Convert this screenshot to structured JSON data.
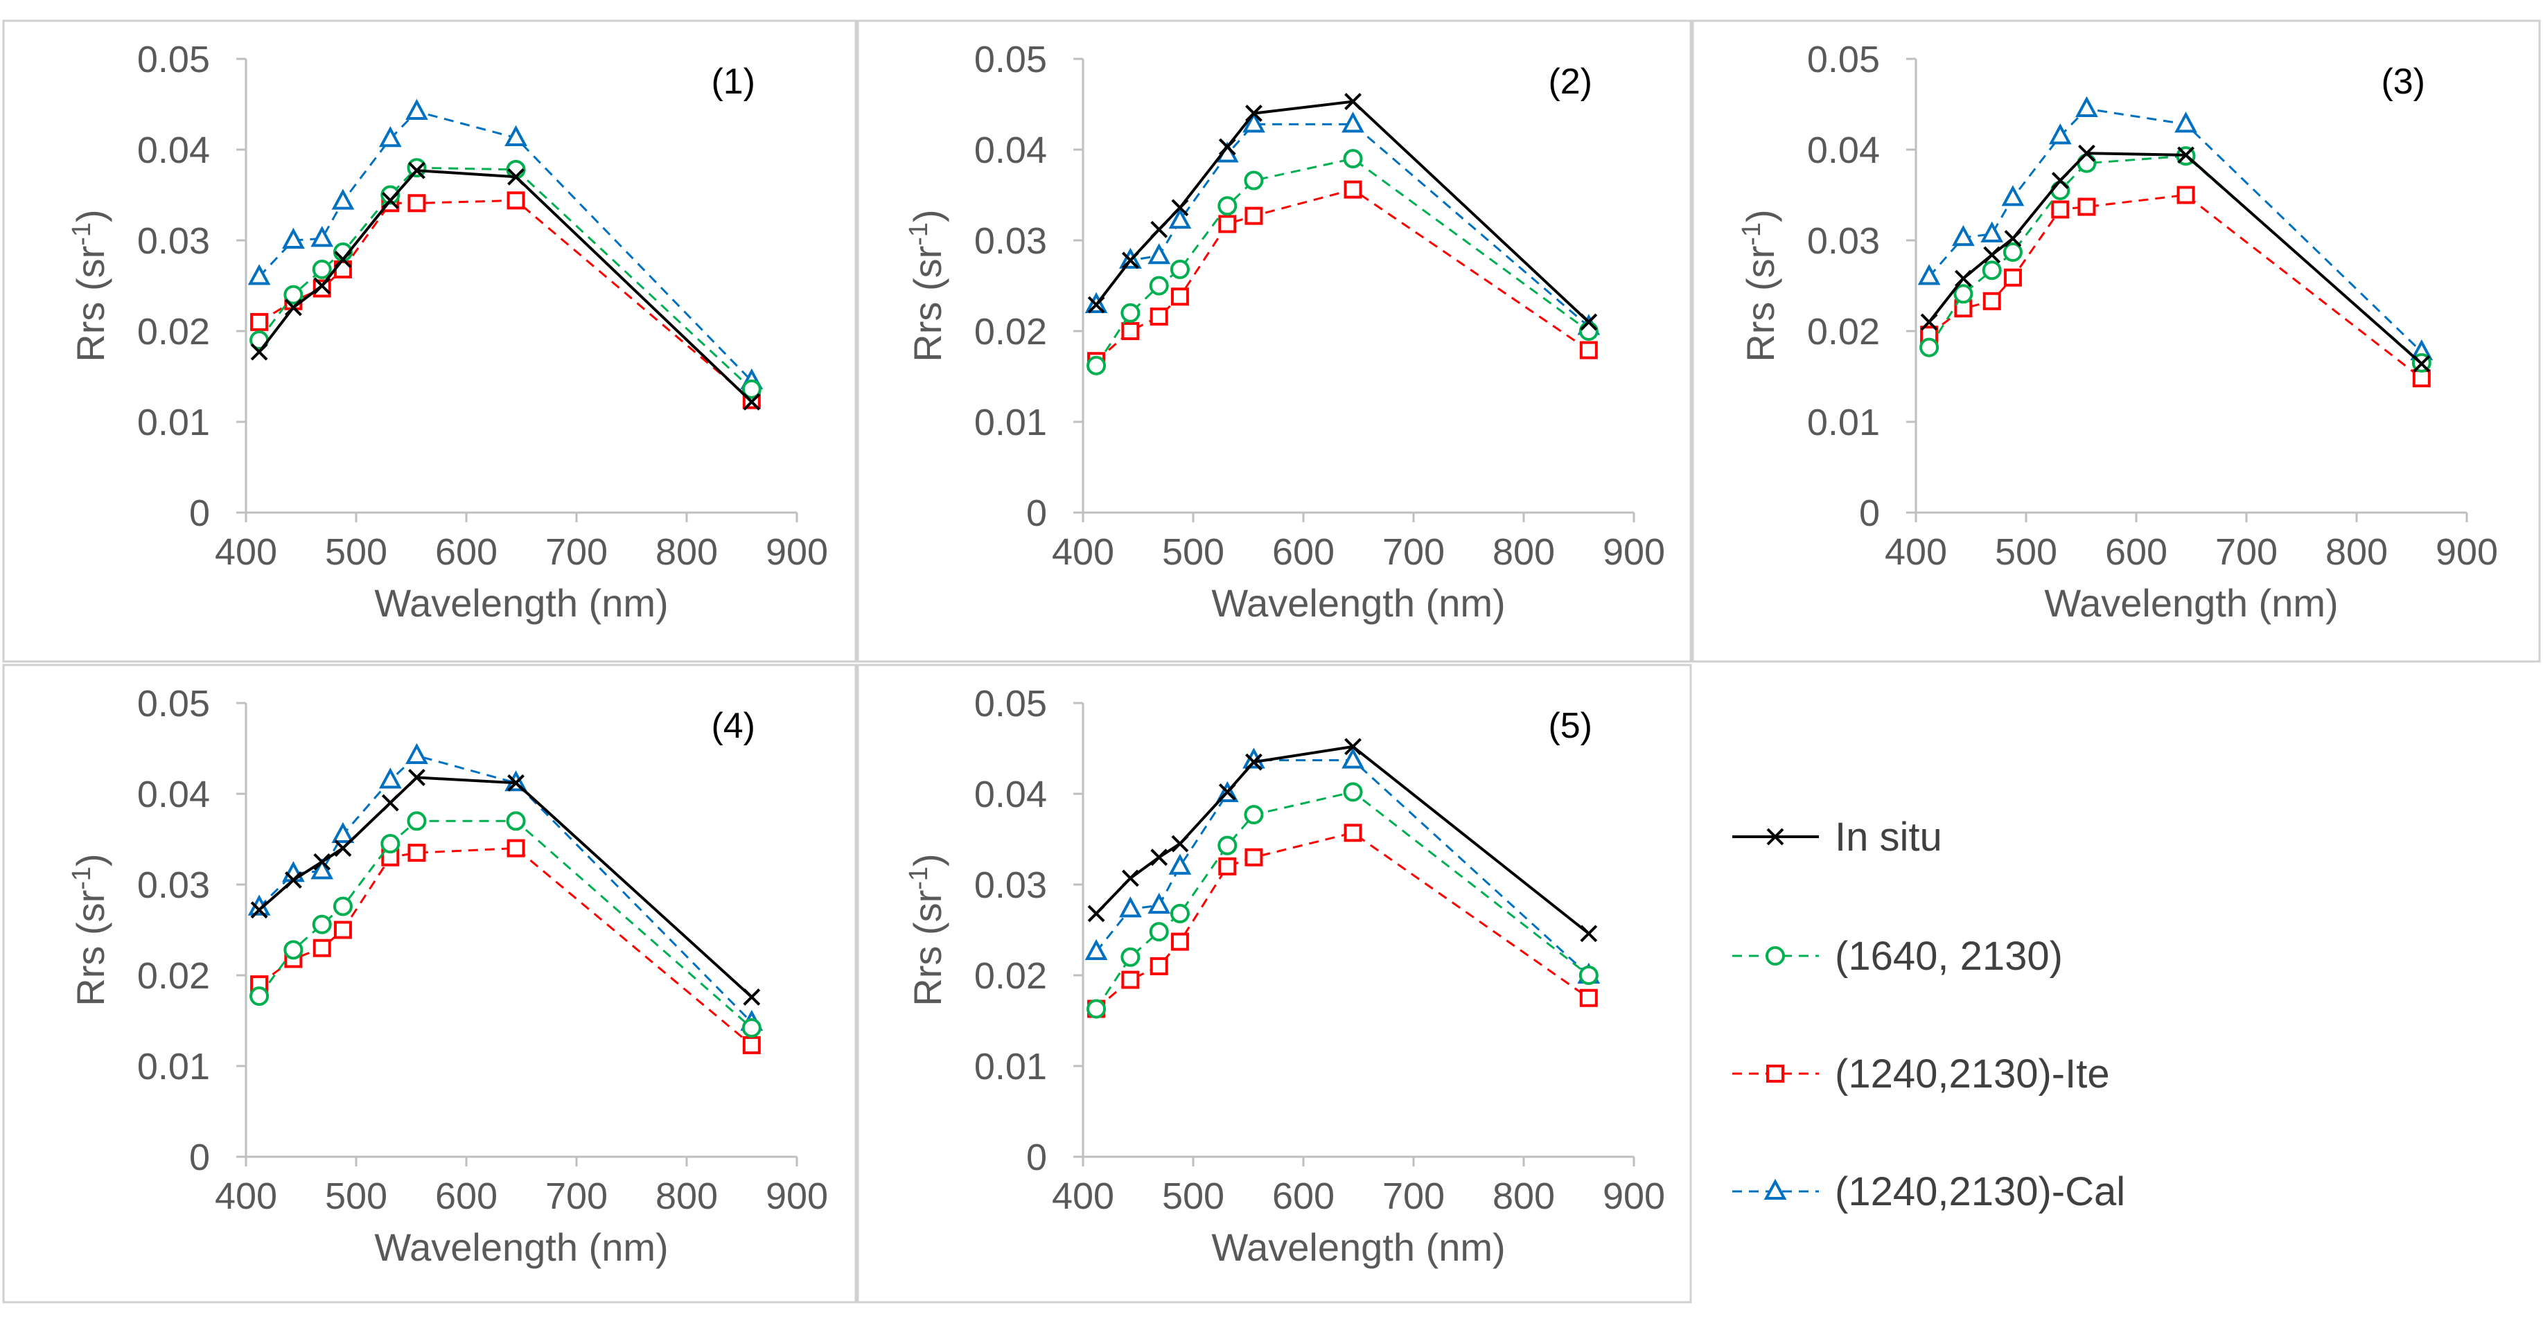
{
  "chart_data": [
    {
      "type": "line",
      "title": "(1)",
      "xlabel": "Wavelength (nm)",
      "ylabel_base": "Rrs (sr",
      "ylabel_sup": "-1",
      "ylabel_end": ")",
      "xlim": [
        400,
        900
      ],
      "ylim": [
        0,
        0.05
      ],
      "x_ticks": [
        "400",
        "500",
        "600",
        "700",
        "800",
        "900"
      ],
      "y_ticks": [
        "0",
        "0.01",
        "0.02",
        "0.03",
        "0.04",
        "0.05"
      ],
      "x": [
        412,
        443,
        469,
        488,
        531,
        555,
        645,
        859
      ],
      "series": [
        {
          "name": "In situ",
          "values": [
            0.0177,
            0.0226,
            0.025,
            0.0279,
            0.0344,
            0.0377,
            0.037,
            0.0122
          ]
        },
        {
          "name": "(1640, 2130)",
          "values": [
            0.019,
            0.024,
            0.0268,
            0.0287,
            0.035,
            0.038,
            0.0378,
            0.0136
          ]
        },
        {
          "name": "(1240,2130)-Ite",
          "values": [
            0.021,
            0.0233,
            0.0247,
            0.0268,
            0.0341,
            0.0341,
            0.0344,
            0.0124
          ]
        },
        {
          "name": "(1240,2130)-Cal",
          "values": [
            0.026,
            0.03,
            0.0302,
            0.0343,
            0.0412,
            0.0442,
            0.0413,
            0.0145
          ]
        }
      ]
    },
    {
      "type": "line",
      "title": "(2)",
      "xlabel": "Wavelength (nm)",
      "ylabel_base": "Rrs (sr",
      "ylabel_sup": "-1",
      "ylabel_end": ")",
      "xlim": [
        400,
        900
      ],
      "ylim": [
        0,
        0.05
      ],
      "x_ticks": [
        "400",
        "500",
        "600",
        "700",
        "800",
        "900"
      ],
      "y_ticks": [
        "0",
        "0.01",
        "0.02",
        "0.03",
        "0.04",
        "0.05"
      ],
      "x": [
        412,
        443,
        469,
        488,
        531,
        555,
        645,
        859
      ],
      "series": [
        {
          "name": "In situ",
          "values": [
            0.0229,
            0.0278,
            0.0312,
            0.0336,
            0.0403,
            0.044,
            0.0453,
            0.021
          ]
        },
        {
          "name": "(1640, 2130)",
          "values": [
            0.0162,
            0.022,
            0.025,
            0.0268,
            0.0338,
            0.0366,
            0.039,
            0.02
          ]
        },
        {
          "name": "(1240,2130)-Ite",
          "values": [
            0.0167,
            0.02,
            0.0216,
            0.0238,
            0.0318,
            0.0327,
            0.0356,
            0.0179
          ]
        },
        {
          "name": "(1240,2130)-Cal",
          "values": [
            0.0229,
            0.0278,
            0.0283,
            0.0322,
            0.0395,
            0.0428,
            0.0428,
            0.0205
          ]
        }
      ]
    },
    {
      "type": "line",
      "title": "(3)",
      "xlabel": "Wavelength (nm)",
      "ylabel_base": "Rrs (sr",
      "ylabel_sup": "-1",
      "ylabel_end": ")",
      "xlim": [
        400,
        900
      ],
      "ylim": [
        0,
        0.05
      ],
      "x_ticks": [
        "400",
        "500",
        "600",
        "700",
        "800",
        "900"
      ],
      "y_ticks": [
        "0",
        "0.01",
        "0.02",
        "0.03",
        "0.04",
        "0.05"
      ],
      "x": [
        412,
        443,
        469,
        488,
        531,
        555,
        645,
        859
      ],
      "series": [
        {
          "name": "In situ",
          "values": [
            0.021,
            0.0258,
            0.0284,
            0.0302,
            0.0366,
            0.0396,
            0.0394,
            0.0164
          ]
        },
        {
          "name": "(1640, 2130)",
          "values": [
            0.0182,
            0.0241,
            0.0267,
            0.0287,
            0.0355,
            0.0385,
            0.0393,
            0.0165
          ]
        },
        {
          "name": "(1240,2130)-Ite",
          "values": [
            0.0196,
            0.0225,
            0.0233,
            0.0259,
            0.0334,
            0.0337,
            0.035,
            0.0148
          ]
        },
        {
          "name": "(1240,2130)-Cal",
          "values": [
            0.026,
            0.0303,
            0.0307,
            0.0347,
            0.0415,
            0.0445,
            0.0428,
            0.0177
          ]
        }
      ]
    },
    {
      "type": "line",
      "title": "(4)",
      "xlabel": "Wavelength (nm)",
      "ylabel_base": "Rrs (sr",
      "ylabel_sup": "-1",
      "ylabel_end": ")",
      "xlim": [
        400,
        900
      ],
      "ylim": [
        0,
        0.05
      ],
      "x_ticks": [
        "400",
        "500",
        "600",
        "700",
        "800",
        "900"
      ],
      "y_ticks": [
        "0",
        "0.01",
        "0.02",
        "0.03",
        "0.04",
        "0.05"
      ],
      "x": [
        412,
        443,
        469,
        488,
        531,
        555,
        645,
        859
      ],
      "series": [
        {
          "name": "In situ",
          "values": [
            0.0272,
            0.0305,
            0.0325,
            0.034,
            0.039,
            0.0418,
            0.0412,
            0.0176
          ]
        },
        {
          "name": "(1640, 2130)",
          "values": [
            0.0177,
            0.0228,
            0.0256,
            0.0276,
            0.0345,
            0.037,
            0.037,
            0.0142
          ]
        },
        {
          "name": "(1240,2130)-Ite",
          "values": [
            0.019,
            0.0218,
            0.023,
            0.025,
            0.033,
            0.0335,
            0.034,
            0.0123
          ]
        },
        {
          "name": "(1240,2130)-Cal",
          "values": [
            0.0275,
            0.0312,
            0.0315,
            0.0355,
            0.0415,
            0.0442,
            0.0412,
            0.0148
          ]
        }
      ]
    },
    {
      "type": "line",
      "title": "(5)",
      "xlabel": "Wavelength (nm)",
      "ylabel_base": "Rrs (sr",
      "ylabel_sup": "-1",
      "ylabel_end": ")",
      "xlim": [
        400,
        900
      ],
      "ylim": [
        0,
        0.05
      ],
      "x_ticks": [
        "400",
        "500",
        "600",
        "700",
        "800",
        "900"
      ],
      "y_ticks": [
        "0",
        "0.01",
        "0.02",
        "0.03",
        "0.04",
        "0.05"
      ],
      "x": [
        412,
        443,
        469,
        488,
        531,
        555,
        645,
        859
      ],
      "series": [
        {
          "name": "In situ",
          "values": [
            0.0268,
            0.0307,
            0.033,
            0.0345,
            0.0402,
            0.0435,
            0.0452,
            0.0246
          ]
        },
        {
          "name": "(1640, 2130)",
          "values": [
            0.0163,
            0.022,
            0.0248,
            0.0268,
            0.0343,
            0.0377,
            0.0402,
            0.02
          ]
        },
        {
          "name": "(1240,2130)-Ite",
          "values": [
            0.0163,
            0.0195,
            0.021,
            0.0237,
            0.032,
            0.033,
            0.0357,
            0.0175
          ]
        },
        {
          "name": "(1240,2130)-Cal",
          "values": [
            0.0226,
            0.0273,
            0.0277,
            0.032,
            0.04,
            0.0437,
            0.0437,
            0.02
          ]
        }
      ]
    }
  ],
  "legend": [
    {
      "name": "In situ",
      "marker": "x",
      "dashed": false,
      "color": "#000000"
    },
    {
      "name": "(1640, 2130)",
      "marker": "circle",
      "dashed": true,
      "color": "#00b050"
    },
    {
      "name": "(1240,2130)-Ite",
      "marker": "square",
      "dashed": true,
      "color": "#ff0000"
    },
    {
      "name": "(1240,2130)-Cal",
      "marker": "triangle",
      "dashed": true,
      "color": "#0070c0"
    }
  ],
  "colors": {
    "in_situ": "#000000",
    "green": "#00b050",
    "red": "#ff0000",
    "blue": "#0070c0"
  }
}
